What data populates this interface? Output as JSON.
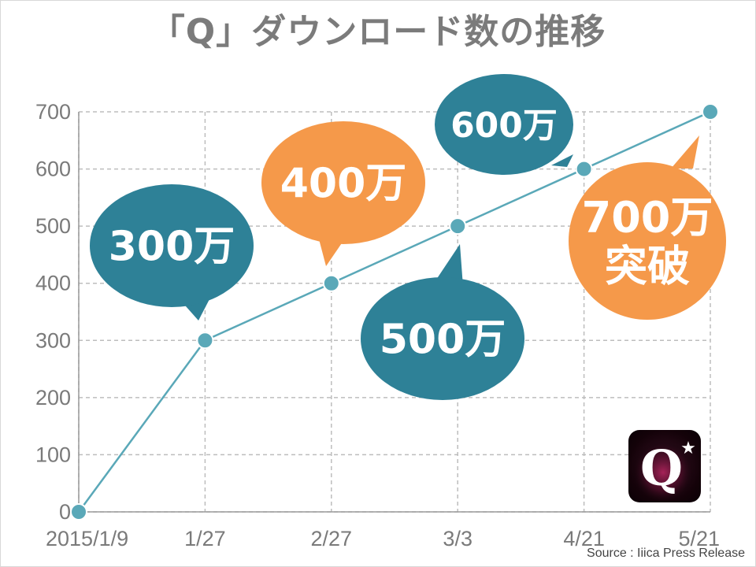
{
  "title": "「Q」ダウンロード数の推移",
  "source": "Source : Iiica Press Release",
  "icon": {
    "name": "q-app-icon",
    "letter": "Q",
    "star": "★"
  },
  "colors": {
    "line": "#5aa8b8",
    "point": "#5aa8b8",
    "grid": "#bdbdbd",
    "teal": "#2e8197",
    "orange": "#f5994a"
  },
  "chart_data": {
    "type": "line",
    "categories": [
      "2015/1/9",
      "1/27",
      "2/27",
      "3/3",
      "4/21",
      "5/21"
    ],
    "values": [
      0,
      300,
      400,
      500,
      600,
      700
    ],
    "title": "「Q」ダウンロード数の推移",
    "xlabel": "",
    "ylabel": "",
    "ylim": [
      0,
      700
    ],
    "yticks": [
      "0",
      "100",
      "200",
      "300",
      "400",
      "500",
      "600",
      "700"
    ],
    "grid": true,
    "annotations": [
      {
        "text": [
          "300万"
        ],
        "point_index": 1,
        "color": "teal"
      },
      {
        "text": [
          "400万"
        ],
        "point_index": 2,
        "color": "orange"
      },
      {
        "text": [
          "500万"
        ],
        "point_index": 3,
        "color": "teal"
      },
      {
        "text": [
          "600万"
        ],
        "point_index": 4,
        "color": "teal"
      },
      {
        "text": [
          "700万",
          "突破"
        ],
        "point_index": 5,
        "color": "orange"
      }
    ]
  }
}
